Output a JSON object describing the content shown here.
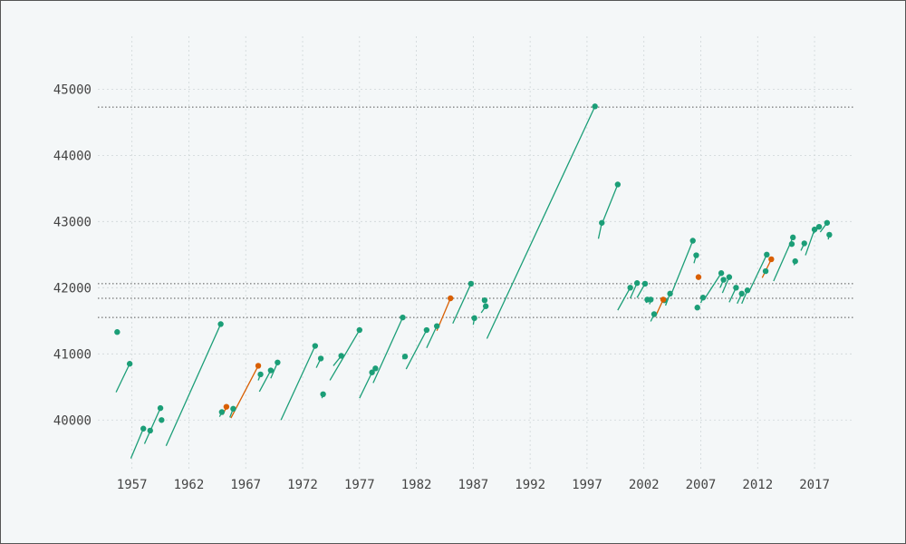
{
  "colors": {
    "background": "#f4f7f8",
    "grid": "#cfd6d8",
    "reference_line": "#555555",
    "primary": "#1b9e77",
    "highlight": "#d95f02"
  },
  "chart_data": {
    "type": "scatter",
    "title": "",
    "xlabel": "",
    "ylabel": "",
    "xlim": [
      1954,
      2020.5
    ],
    "ylim": [
      39250,
      45800
    ],
    "x_ticks": [
      1957,
      1962,
      1967,
      1972,
      1977,
      1982,
      1987,
      1992,
      1997,
      2002,
      2007,
      2012,
      2017
    ],
    "y_ticks": [
      40000,
      41000,
      42000,
      43000,
      44000,
      45000
    ],
    "grid": true,
    "legend": "none",
    "reference_lines_y": [
      44730,
      42060,
      41840,
      41550
    ],
    "series": [
      {
        "color_key": "primary",
        "points": [
          {
            "x": 1955.7,
            "y": 41330
          },
          {
            "x": 1956.8,
            "y": 40850
          },
          {
            "x": 1958.0,
            "y": 39870
          },
          {
            "x": 1958.6,
            "y": 39840
          },
          {
            "x": 1959.5,
            "y": 40180
          },
          {
            "x": 1959.6,
            "y": 40000
          },
          {
            "x": 1964.8,
            "y": 41450
          },
          {
            "x": 1964.9,
            "y": 40120
          },
          {
            "x": 1965.9,
            "y": 40170
          },
          {
            "x": 1968.3,
            "y": 40690
          },
          {
            "x": 1969.2,
            "y": 40750
          },
          {
            "x": 1969.8,
            "y": 40870
          },
          {
            "x": 1973.1,
            "y": 41120
          },
          {
            "x": 1973.6,
            "y": 40930
          },
          {
            "x": 1973.8,
            "y": 40390
          },
          {
            "x": 1975.4,
            "y": 40970
          },
          {
            "x": 1977.0,
            "y": 41360
          },
          {
            "x": 1978.1,
            "y": 40720
          },
          {
            "x": 1978.4,
            "y": 40780
          },
          {
            "x": 1980.8,
            "y": 41550
          },
          {
            "x": 1981.0,
            "y": 40960
          },
          {
            "x": 1982.9,
            "y": 41360
          },
          {
            "x": 1983.8,
            "y": 41420
          },
          {
            "x": 1986.8,
            "y": 42060
          },
          {
            "x": 1987.1,
            "y": 41540
          },
          {
            "x": 1988.0,
            "y": 41810
          },
          {
            "x": 1988.1,
            "y": 41720
          },
          {
            "x": 1997.7,
            "y": 44740
          },
          {
            "x": 1998.3,
            "y": 42980
          },
          {
            "x": 1999.7,
            "y": 43560
          },
          {
            "x": 2000.8,
            "y": 42000
          },
          {
            "x": 2001.4,
            "y": 42070
          },
          {
            "x": 2002.1,
            "y": 42060
          },
          {
            "x": 2002.3,
            "y": 41820
          },
          {
            "x": 2002.6,
            "y": 41820
          },
          {
            "x": 2002.9,
            "y": 41600
          },
          {
            "x": 2003.8,
            "y": 41810
          },
          {
            "x": 2004.3,
            "y": 41910
          },
          {
            "x": 2006.3,
            "y": 42710
          },
          {
            "x": 2006.6,
            "y": 42490
          },
          {
            "x": 2006.7,
            "y": 41700
          },
          {
            "x": 2007.2,
            "y": 41850
          },
          {
            "x": 2008.8,
            "y": 42220
          },
          {
            "x": 2009.0,
            "y": 42120
          },
          {
            "x": 2009.5,
            "y": 42160
          },
          {
            "x": 2010.1,
            "y": 42000
          },
          {
            "x": 2010.6,
            "y": 41910
          },
          {
            "x": 2011.1,
            "y": 41960
          },
          {
            "x": 2012.7,
            "y": 42250
          },
          {
            "x": 2012.8,
            "y": 42500
          },
          {
            "x": 2015.0,
            "y": 42660
          },
          {
            "x": 2015.1,
            "y": 42760
          },
          {
            "x": 2015.3,
            "y": 42400
          },
          {
            "x": 2016.1,
            "y": 42670
          },
          {
            "x": 2017.0,
            "y": 42880
          },
          {
            "x": 2017.4,
            "y": 42920
          },
          {
            "x": 2018.1,
            "y": 42980
          },
          {
            "x": 2018.3,
            "y": 42800
          }
        ]
      },
      {
        "color_key": "highlight",
        "points": [
          {
            "x": 1965.3,
            "y": 40200
          },
          {
            "x": 1968.1,
            "y": 40820
          },
          {
            "x": 1985.0,
            "y": 41840
          },
          {
            "x": 2003.7,
            "y": 41820
          },
          {
            "x": 2006.8,
            "y": 42160
          },
          {
            "x": 2013.2,
            "y": 42430
          }
        ]
      }
    ],
    "trend_segments": [
      {
        "color_key": "primary",
        "x1": 1955.6,
        "y1": 40420,
        "x2": 1956.8,
        "y2": 40850
      },
      {
        "color_key": "primary",
        "x1": 1956.9,
        "y1": 39420,
        "x2": 1958.0,
        "y2": 39870
      },
      {
        "color_key": "primary",
        "x1": 1958.1,
        "y1": 39640,
        "x2": 1959.5,
        "y2": 40180
      },
      {
        "color_key": "primary",
        "x1": 1960.0,
        "y1": 39610,
        "x2": 1964.8,
        "y2": 41450
      },
      {
        "color_key": "primary",
        "x1": 1964.7,
        "y1": 40050,
        "x2": 1964.9,
        "y2": 40120
      },
      {
        "color_key": "highlight",
        "x1": 1965.0,
        "y1": 40080,
        "x2": 1965.3,
        "y2": 40200
      },
      {
        "color_key": "primary",
        "x1": 1965.6,
        "y1": 40040,
        "x2": 1965.9,
        "y2": 40170
      },
      {
        "color_key": "highlight",
        "x1": 1965.7,
        "y1": 40030,
        "x2": 1968.1,
        "y2": 40820
      },
      {
        "color_key": "primary",
        "x1": 1968.1,
        "y1": 40600,
        "x2": 1968.3,
        "y2": 40690
      },
      {
        "color_key": "primary",
        "x1": 1968.2,
        "y1": 40430,
        "x2": 1969.2,
        "y2": 40750
      },
      {
        "color_key": "primary",
        "x1": 1969.2,
        "y1": 40630,
        "x2": 1969.8,
        "y2": 40870
      },
      {
        "color_key": "primary",
        "x1": 1970.1,
        "y1": 40000,
        "x2": 1973.1,
        "y2": 41120
      },
      {
        "color_key": "primary",
        "x1": 1973.2,
        "y1": 40790,
        "x2": 1973.6,
        "y2": 40930
      },
      {
        "color_key": "primary",
        "x1": 1973.7,
        "y1": 40330,
        "x2": 1973.8,
        "y2": 40390
      },
      {
        "color_key": "primary",
        "x1": 1974.7,
        "y1": 40820,
        "x2": 1975.4,
        "y2": 40970
      },
      {
        "color_key": "primary",
        "x1": 1974.4,
        "y1": 40600,
        "x2": 1977.0,
        "y2": 41360
      },
      {
        "color_key": "primary",
        "x1": 1977.0,
        "y1": 40330,
        "x2": 1978.1,
        "y2": 40720
      },
      {
        "color_key": "primary",
        "x1": 1978.2,
        "y1": 40560,
        "x2": 1980.8,
        "y2": 41550
      },
      {
        "color_key": "primary",
        "x1": 1980.8,
        "y1": 40920,
        "x2": 1981.0,
        "y2": 40960
      },
      {
        "color_key": "primary",
        "x1": 1981.1,
        "y1": 40770,
        "x2": 1982.9,
        "y2": 41360
      },
      {
        "color_key": "primary",
        "x1": 1982.9,
        "y1": 41090,
        "x2": 1983.8,
        "y2": 41420
      },
      {
        "color_key": "highlight",
        "x1": 1983.8,
        "y1": 41350,
        "x2": 1985.0,
        "y2": 41840
      },
      {
        "color_key": "primary",
        "x1": 1985.2,
        "y1": 41460,
        "x2": 1986.8,
        "y2": 42060
      },
      {
        "color_key": "primary",
        "x1": 1987.0,
        "y1": 41440,
        "x2": 1987.1,
        "y2": 41540
      },
      {
        "color_key": "primary",
        "x1": 1987.7,
        "y1": 41620,
        "x2": 1988.1,
        "y2": 41720
      },
      {
        "color_key": "primary",
        "x1": 1988.2,
        "y1": 41230,
        "x2": 1997.7,
        "y2": 44740
      },
      {
        "color_key": "primary",
        "x1": 1998.0,
        "y1": 42740,
        "x2": 1998.3,
        "y2": 42980
      },
      {
        "color_key": "primary",
        "x1": 1998.3,
        "y1": 42960,
        "x2": 1999.7,
        "y2": 43560
      },
      {
        "color_key": "primary",
        "x1": 1999.7,
        "y1": 41660,
        "x2": 2000.8,
        "y2": 42000
      },
      {
        "color_key": "primary",
        "x1": 2000.8,
        "y1": 41840,
        "x2": 2001.4,
        "y2": 42070
      },
      {
        "color_key": "primary",
        "x1": 2001.4,
        "y1": 41850,
        "x2": 2002.1,
        "y2": 42060
      },
      {
        "color_key": "primary",
        "x1": 2002.2,
        "y1": 41770,
        "x2": 2002.3,
        "y2": 41820
      },
      {
        "color_key": "primary",
        "x1": 2002.5,
        "y1": 41750,
        "x2": 2002.6,
        "y2": 41820
      },
      {
        "color_key": "primary",
        "x1": 2002.6,
        "y1": 41490,
        "x2": 2002.9,
        "y2": 41600
      },
      {
        "color_key": "highlight",
        "x1": 2003.0,
        "y1": 41560,
        "x2": 2003.7,
        "y2": 41820
      },
      {
        "color_key": "primary",
        "x1": 2003.9,
        "y1": 41730,
        "x2": 2004.3,
        "y2": 41910
      },
      {
        "color_key": "primary",
        "x1": 2004.4,
        "y1": 41900,
        "x2": 2006.3,
        "y2": 42710
      },
      {
        "color_key": "primary",
        "x1": 2006.4,
        "y1": 42370,
        "x2": 2006.6,
        "y2": 42490
      },
      {
        "color_key": "primary",
        "x1": 2006.6,
        "y1": 41660,
        "x2": 2006.7,
        "y2": 41700
      },
      {
        "color_key": "primary",
        "x1": 2007.0,
        "y1": 41770,
        "x2": 2007.2,
        "y2": 41850
      },
      {
        "color_key": "primary",
        "x1": 2007.4,
        "y1": 41850,
        "x2": 2008.8,
        "y2": 42220
      },
      {
        "color_key": "primary",
        "x1": 2008.7,
        "y1": 42000,
        "x2": 2009.0,
        "y2": 42120
      },
      {
        "color_key": "primary",
        "x1": 2008.9,
        "y1": 41920,
        "x2": 2009.5,
        "y2": 42160
      },
      {
        "color_key": "primary",
        "x1": 2009.5,
        "y1": 41780,
        "x2": 2010.1,
        "y2": 42000
      },
      {
        "color_key": "primary",
        "x1": 2010.2,
        "y1": 41760,
        "x2": 2010.6,
        "y2": 41910
      },
      {
        "color_key": "primary",
        "x1": 2010.6,
        "y1": 41760,
        "x2": 2011.1,
        "y2": 41960
      },
      {
        "color_key": "primary",
        "x1": 2011.3,
        "y1": 41960,
        "x2": 2012.8,
        "y2": 42500
      },
      {
        "color_key": "highlight",
        "x1": 2012.4,
        "y1": 42150,
        "x2": 2013.2,
        "y2": 42430
      },
      {
        "color_key": "primary",
        "x1": 2013.4,
        "y1": 42100,
        "x2": 2015.1,
        "y2": 42760
      },
      {
        "color_key": "primary",
        "x1": 2015.2,
        "y1": 42340,
        "x2": 2015.3,
        "y2": 42400
      },
      {
        "color_key": "primary",
        "x1": 2015.8,
        "y1": 42560,
        "x2": 2016.1,
        "y2": 42670
      },
      {
        "color_key": "primary",
        "x1": 2016.2,
        "y1": 42490,
        "x2": 2017.0,
        "y2": 42880
      },
      {
        "color_key": "primary",
        "x1": 2016.9,
        "y1": 42820,
        "x2": 2017.4,
        "y2": 42920
      },
      {
        "color_key": "primary",
        "x1": 2017.5,
        "y1": 42840,
        "x2": 2018.1,
        "y2": 42980
      },
      {
        "color_key": "primary",
        "x1": 2018.2,
        "y1": 42730,
        "x2": 2018.3,
        "y2": 42800
      }
    ]
  }
}
